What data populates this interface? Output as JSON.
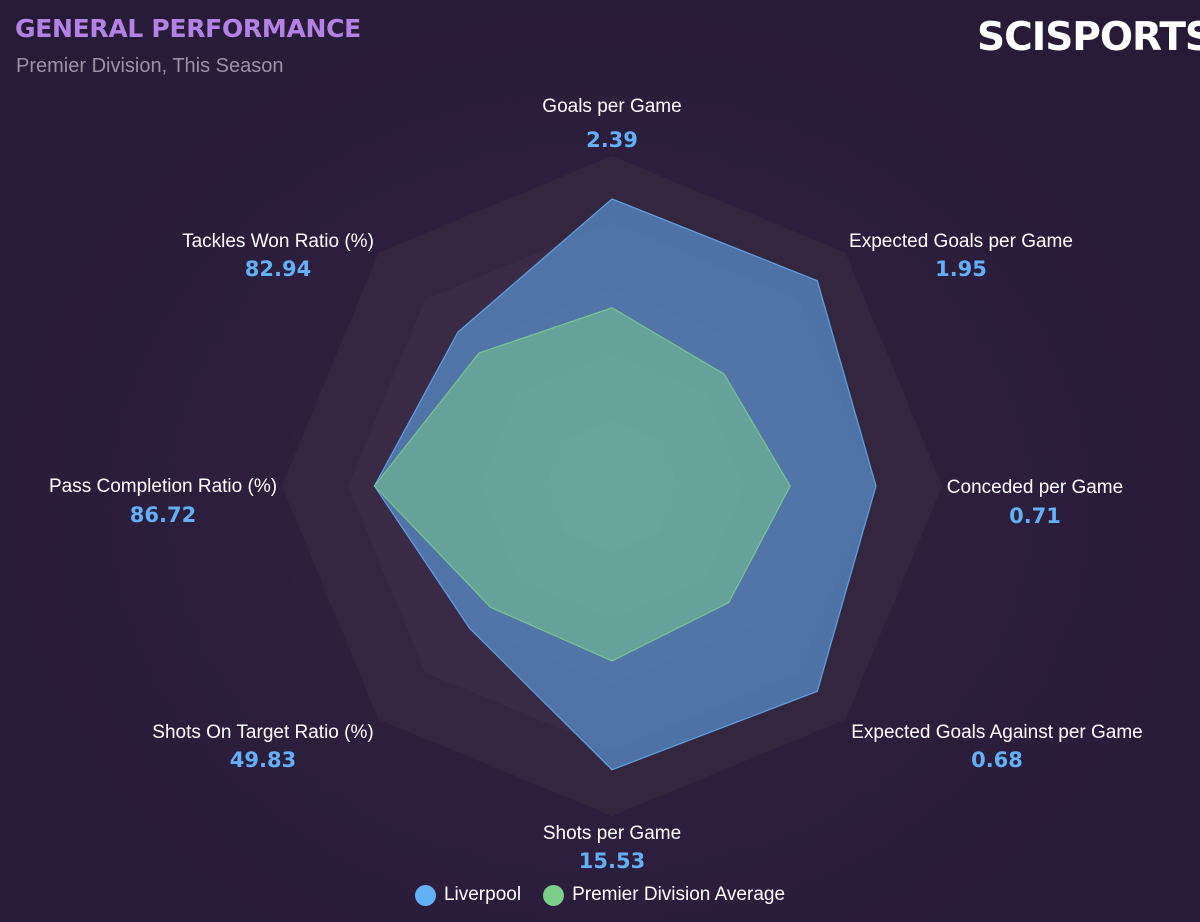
{
  "header": {
    "title": "GENERAL PERFORMANCE",
    "subtitle": "Premier Division, This Season",
    "logo_text": "SCISPORTS"
  },
  "colors": {
    "team": "#63b0f7",
    "average": "#7ccf8b",
    "title": "#b482e6"
  },
  "legend": [
    {
      "label": "Liverpool",
      "color": "#63b0f7"
    },
    {
      "label": "Premier Division Average",
      "color": "#7ccf8b"
    }
  ],
  "chart_data": {
    "type": "radar",
    "title": "GENERAL PERFORMANCE",
    "axes": [
      {
        "label": "Goals per Game",
        "value_label": "2.39"
      },
      {
        "label": "Expected Goals per Game",
        "value_label": "1.95"
      },
      {
        "label": "Conceded per Game",
        "value_label": "0.71"
      },
      {
        "label": "Expected Goals Against per Game",
        "value_label": "0.68"
      },
      {
        "label": "Shots per Game",
        "value_label": "15.53"
      },
      {
        "label": "Shots On Target Ratio (%)",
        "value_label": "49.83"
      },
      {
        "label": "Pass Completion Ratio (%)",
        "value_label": "86.72"
      },
      {
        "label": "Tackles Won Ratio (%)",
        "value_label": "82.94"
      }
    ],
    "scale": [
      0,
      1
    ],
    "rings": 5,
    "series": [
      {
        "name": "Liverpool",
        "values": [
          0.87,
          0.88,
          0.8,
          0.88,
          0.86,
          0.61,
          0.72,
          0.66
        ]
      },
      {
        "name": "Premier Division Average",
        "values": [
          0.54,
          0.48,
          0.54,
          0.5,
          0.53,
          0.52,
          0.72,
          0.57
        ]
      }
    ]
  }
}
